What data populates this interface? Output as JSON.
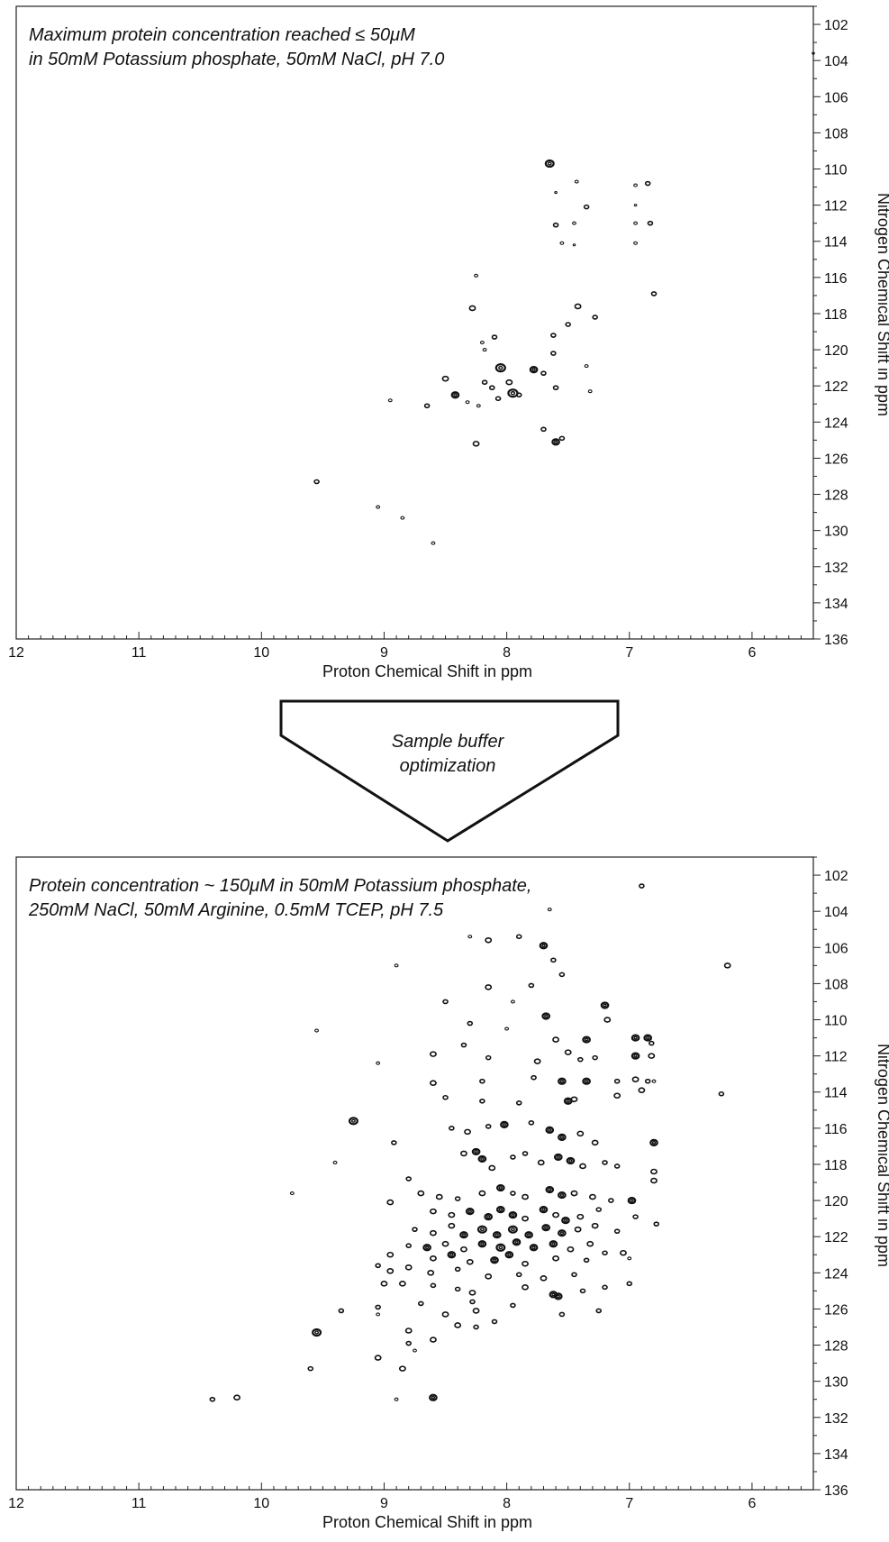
{
  "arrow": {
    "line1": "Sample buffer",
    "line2": "optimization"
  },
  "chart_data": [
    {
      "type": "scatter",
      "annotation": [
        "Maximum protein concentration reached ≤ 50μM",
        "in 50mM Potassium phosphate, 50mM NaCl, pH 7.0"
      ],
      "xlabel": "Proton Chemical Shift in ppm",
      "ylabel": "Nitrogen Chemical Shift in ppm",
      "xlim": [
        12,
        5.5
      ],
      "ylim": [
        101,
        136
      ],
      "x_ticks": [
        12,
        11,
        10,
        9,
        8,
        7,
        6
      ],
      "y_ticks": [
        102,
        104,
        106,
        108,
        110,
        112,
        114,
        116,
        118,
        120,
        122,
        124,
        126,
        128,
        130,
        132,
        134,
        136
      ],
      "x_minor_step": 0.1,
      "y_minor_step": 1,
      "y_axis_side": "right",
      "grid": false,
      "points": [
        [
          7.65,
          109.7,
          3.5
        ],
        [
          7.43,
          110.7,
          1.5
        ],
        [
          7.6,
          111.3,
          1
        ],
        [
          6.95,
          110.9,
          1.5
        ],
        [
          6.85,
          110.8,
          2
        ],
        [
          7.35,
          112.1,
          2
        ],
        [
          6.95,
          112.0,
          1
        ],
        [
          7.6,
          113.1,
          2
        ],
        [
          7.45,
          113.0,
          1.5
        ],
        [
          6.95,
          113.0,
          1.5
        ],
        [
          6.83,
          113.0,
          2
        ],
        [
          7.55,
          114.1,
          1.5
        ],
        [
          7.45,
          114.2,
          1
        ],
        [
          6.95,
          114.1,
          1.5
        ],
        [
          8.25,
          115.9,
          1.5
        ],
        [
          6.8,
          116.9,
          2
        ],
        [
          8.28,
          117.7,
          2.5
        ],
        [
          7.42,
          117.6,
          2.5
        ],
        [
          7.5,
          118.6,
          2
        ],
        [
          7.28,
          118.2,
          2
        ],
        [
          7.62,
          119.2,
          2
        ],
        [
          8.1,
          119.3,
          2
        ],
        [
          8.2,
          119.6,
          1.5
        ],
        [
          8.18,
          120.0,
          1.5
        ],
        [
          7.62,
          120.2,
          2
        ],
        [
          8.05,
          121.0,
          4
        ],
        [
          7.78,
          121.1,
          3
        ],
        [
          7.7,
          121.3,
          2
        ],
        [
          7.35,
          120.9,
          1.5
        ],
        [
          8.5,
          121.6,
          2.5
        ],
        [
          8.18,
          121.8,
          2
        ],
        [
          8.12,
          122.1,
          2
        ],
        [
          7.98,
          121.8,
          2.5
        ],
        [
          7.95,
          122.4,
          4
        ],
        [
          7.9,
          122.5,
          2
        ],
        [
          7.6,
          122.1,
          2
        ],
        [
          7.32,
          122.3,
          1.5
        ],
        [
          8.42,
          122.5,
          3
        ],
        [
          8.32,
          122.9,
          1.5
        ],
        [
          8.07,
          122.7,
          2
        ],
        [
          8.95,
          122.8,
          1.5
        ],
        [
          8.65,
          123.1,
          2
        ],
        [
          8.23,
          123.1,
          1.5
        ],
        [
          7.7,
          124.4,
          2
        ],
        [
          7.6,
          125.1,
          3
        ],
        [
          7.55,
          124.9,
          2
        ],
        [
          8.25,
          125.2,
          2.5
        ],
        [
          9.55,
          127.3,
          2
        ],
        [
          9.05,
          128.7,
          1.5
        ],
        [
          8.85,
          129.3,
          1.5
        ],
        [
          8.6,
          130.7,
          1.5
        ],
        [
          5.5,
          103.6,
          1
        ]
      ]
    },
    {
      "type": "scatter",
      "annotation": [
        "Protein concentration ~ 150μM in 50mM Potassium phosphate,",
        "250mM NaCl, 50mM Arginine, 0.5mM TCEP, pH 7.5"
      ],
      "xlabel": "Proton Chemical Shift in ppm",
      "ylabel": "Nitrogen Chemical Shift in ppm",
      "xlim": [
        12,
        5.5
      ],
      "ylim": [
        101,
        136
      ],
      "x_ticks": [
        12,
        11,
        10,
        9,
        8,
        7,
        6
      ],
      "y_ticks": [
        102,
        104,
        106,
        108,
        110,
        112,
        114,
        116,
        118,
        120,
        122,
        124,
        126,
        128,
        130,
        132,
        134,
        136
      ],
      "x_minor_step": 0.1,
      "y_minor_step": 1,
      "y_axis_side": "right",
      "grid": false,
      "points": [
        [
          6.9,
          102.6,
          2
        ],
        [
          7.65,
          103.9,
          1.5
        ],
        [
          8.3,
          105.4,
          1.5
        ],
        [
          8.15,
          105.6,
          2.5
        ],
        [
          7.9,
          105.4,
          2
        ],
        [
          7.7,
          105.9,
          3
        ],
        [
          7.62,
          106.7,
          2
        ],
        [
          6.2,
          107.0,
          2.5
        ],
        [
          8.9,
          107.0,
          1.5
        ],
        [
          7.55,
          107.5,
          2
        ],
        [
          8.15,
          108.2,
          2.5
        ],
        [
          7.8,
          108.1,
          2
        ],
        [
          8.5,
          109.0,
          2
        ],
        [
          7.95,
          109.0,
          1.5
        ],
        [
          7.2,
          109.2,
          3
        ],
        [
          7.68,
          109.8,
          3
        ],
        [
          9.55,
          110.6,
          1.5
        ],
        [
          8.3,
          110.2,
          2
        ],
        [
          8.0,
          110.5,
          1.5
        ],
        [
          7.6,
          111.1,
          2.5
        ],
        [
          7.35,
          111.1,
          3
        ],
        [
          7.18,
          110.0,
          2.5
        ],
        [
          6.95,
          111.0,
          3
        ],
        [
          6.85,
          111.0,
          3
        ],
        [
          6.82,
          111.3,
          2
        ],
        [
          9.05,
          112.4,
          1.5
        ],
        [
          8.6,
          111.9,
          2.5
        ],
        [
          8.35,
          111.4,
          2
        ],
        [
          8.15,
          112.1,
          2
        ],
        [
          7.75,
          112.3,
          2.5
        ],
        [
          7.5,
          111.8,
          2.5
        ],
        [
          7.4,
          112.2,
          2
        ],
        [
          7.28,
          112.1,
          2
        ],
        [
          6.95,
          112.0,
          3
        ],
        [
          6.82,
          112.0,
          2.5
        ],
        [
          8.6,
          113.5,
          2.5
        ],
        [
          8.2,
          113.4,
          2
        ],
        [
          7.78,
          113.2,
          2
        ],
        [
          7.55,
          113.4,
          3
        ],
        [
          7.35,
          113.4,
          3
        ],
        [
          7.1,
          113.4,
          2
        ],
        [
          6.95,
          113.3,
          2.5
        ],
        [
          6.85,
          113.4,
          2
        ],
        [
          6.8,
          113.4,
          1.5
        ],
        [
          8.5,
          114.3,
          2
        ],
        [
          8.2,
          114.5,
          2
        ],
        [
          7.9,
          114.6,
          2
        ],
        [
          7.5,
          114.5,
          3
        ],
        [
          7.45,
          114.4,
          2.5
        ],
        [
          7.1,
          114.2,
          2.5
        ],
        [
          6.9,
          113.9,
          2.5
        ],
        [
          6.25,
          114.1,
          2
        ],
        [
          9.25,
          115.6,
          3.5
        ],
        [
          8.45,
          116.0,
          2
        ],
        [
          8.32,
          116.2,
          2.5
        ],
        [
          8.15,
          115.9,
          2
        ],
        [
          8.02,
          115.8,
          3
        ],
        [
          7.8,
          115.7,
          2
        ],
        [
          7.65,
          116.1,
          3
        ],
        [
          7.55,
          116.5,
          3
        ],
        [
          7.4,
          116.3,
          2.5
        ],
        [
          7.28,
          116.8,
          2.5
        ],
        [
          6.8,
          116.8,
          3
        ],
        [
          8.92,
          116.8,
          2
        ],
        [
          9.4,
          117.9,
          1.5
        ],
        [
          8.8,
          118.8,
          2
        ],
        [
          8.35,
          117.4,
          2.5
        ],
        [
          8.25,
          117.3,
          3
        ],
        [
          8.2,
          117.7,
          3
        ],
        [
          8.12,
          118.2,
          2.5
        ],
        [
          7.95,
          117.6,
          2
        ],
        [
          7.85,
          117.4,
          2
        ],
        [
          7.72,
          117.9,
          2.5
        ],
        [
          7.58,
          117.6,
          3
        ],
        [
          7.48,
          117.8,
          3
        ],
        [
          7.38,
          118.1,
          2.5
        ],
        [
          7.2,
          117.9,
          2
        ],
        [
          7.1,
          118.1,
          2
        ],
        [
          6.8,
          118.4,
          2.5
        ],
        [
          9.75,
          119.6,
          1.5
        ],
        [
          8.95,
          120.1,
          2.5
        ],
        [
          8.7,
          119.6,
          2.5
        ],
        [
          8.55,
          119.8,
          2.5
        ],
        [
          8.4,
          119.9,
          2
        ],
        [
          8.2,
          119.6,
          2.5
        ],
        [
          8.05,
          119.3,
          3
        ],
        [
          7.95,
          119.6,
          2
        ],
        [
          7.85,
          119.8,
          2.5
        ],
        [
          7.65,
          119.4,
          3
        ],
        [
          7.55,
          119.7,
          3
        ],
        [
          7.45,
          119.6,
          2.5
        ],
        [
          7.3,
          119.8,
          2.5
        ],
        [
          7.15,
          120.0,
          2
        ],
        [
          6.98,
          120.0,
          3
        ],
        [
          6.8,
          118.9,
          2.5
        ],
        [
          8.6,
          120.6,
          2.5
        ],
        [
          8.45,
          120.8,
          2.5
        ],
        [
          8.3,
          120.6,
          3
        ],
        [
          8.15,
          120.9,
          3
        ],
        [
          8.05,
          120.5,
          3
        ],
        [
          7.95,
          120.8,
          3
        ],
        [
          7.85,
          121.0,
          2.5
        ],
        [
          7.7,
          120.5,
          3
        ],
        [
          7.6,
          120.8,
          2.5
        ],
        [
          7.52,
          121.1,
          3
        ],
        [
          7.4,
          120.9,
          2.5
        ],
        [
          7.25,
          120.5,
          2
        ],
        [
          6.95,
          120.9,
          2
        ],
        [
          6.78,
          121.3,
          2
        ],
        [
          8.75,
          121.6,
          2
        ],
        [
          8.6,
          121.8,
          2.5
        ],
        [
          8.45,
          121.4,
          2.5
        ],
        [
          8.35,
          121.9,
          3
        ],
        [
          8.2,
          121.6,
          3.5
        ],
        [
          8.08,
          121.9,
          3
        ],
        [
          7.95,
          121.6,
          3.5
        ],
        [
          7.82,
          121.9,
          3
        ],
        [
          7.68,
          121.5,
          3
        ],
        [
          7.55,
          121.8,
          3
        ],
        [
          7.42,
          121.6,
          2.5
        ],
        [
          7.28,
          121.4,
          2.5
        ],
        [
          7.1,
          121.7,
          2
        ],
        [
          8.8,
          122.5,
          2
        ],
        [
          8.65,
          122.6,
          3
        ],
        [
          8.5,
          122.4,
          2.5
        ],
        [
          8.35,
          122.7,
          2.5
        ],
        [
          8.2,
          122.4,
          3
        ],
        [
          8.05,
          122.6,
          3.5
        ],
        [
          7.92,
          122.3,
          3
        ],
        [
          7.78,
          122.6,
          3
        ],
        [
          7.62,
          122.4,
          3
        ],
        [
          7.48,
          122.7,
          2.5
        ],
        [
          7.32,
          122.4,
          2.5
        ],
        [
          7.2,
          122.9,
          2
        ],
        [
          7.05,
          122.9,
          2.5
        ],
        [
          8.95,
          123.0,
          2.5
        ],
        [
          8.6,
          123.2,
          2.5
        ],
        [
          8.45,
          123.0,
          3
        ],
        [
          8.3,
          123.4,
          2.5
        ],
        [
          8.1,
          123.3,
          3
        ],
        [
          7.98,
          123.0,
          3
        ],
        [
          7.85,
          123.5,
          2.5
        ],
        [
          7.6,
          123.2,
          2.5
        ],
        [
          7.35,
          123.3,
          2
        ],
        [
          7.0,
          123.2,
          1.5
        ],
        [
          9.05,
          123.6,
          2
        ],
        [
          8.95,
          123.9,
          2.5
        ],
        [
          8.8,
          123.7,
          2.5
        ],
        [
          8.62,
          124.0,
          2.5
        ],
        [
          8.4,
          123.8,
          2
        ],
        [
          8.15,
          124.2,
          2.5
        ],
        [
          7.9,
          124.1,
          2
        ],
        [
          7.7,
          124.3,
          2.5
        ],
        [
          7.45,
          124.1,
          2
        ],
        [
          9.0,
          124.6,
          2.5
        ],
        [
          8.85,
          124.6,
          2.5
        ],
        [
          8.6,
          124.7,
          2
        ],
        [
          8.4,
          124.9,
          2
        ],
        [
          8.28,
          125.1,
          2.5
        ],
        [
          7.85,
          124.8,
          2.5
        ],
        [
          7.62,
          125.2,
          3
        ],
        [
          7.58,
          125.3,
          3
        ],
        [
          7.38,
          125.0,
          2
        ],
        [
          7.2,
          124.8,
          2
        ],
        [
          7.0,
          124.6,
          2
        ],
        [
          9.35,
          126.1,
          2
        ],
        [
          9.05,
          125.9,
          2
        ],
        [
          8.7,
          125.7,
          2
        ],
        [
          8.5,
          126.3,
          2.5
        ],
        [
          8.28,
          125.6,
          2
        ],
        [
          8.25,
          126.1,
          2.5
        ],
        [
          7.95,
          125.8,
          2
        ],
        [
          7.55,
          126.3,
          2
        ],
        [
          7.25,
          126.1,
          2
        ],
        [
          9.55,
          127.3,
          3.5
        ],
        [
          9.05,
          126.3,
          1.5
        ],
        [
          8.8,
          127.2,
          2.5
        ],
        [
          8.6,
          127.7,
          2.5
        ],
        [
          8.4,
          126.9,
          2.5
        ],
        [
          8.25,
          127.0,
          2
        ],
        [
          8.1,
          126.7,
          2
        ],
        [
          8.8,
          127.9,
          2
        ],
        [
          8.75,
          128.3,
          1.5
        ],
        [
          9.6,
          129.3,
          2
        ],
        [
          9.05,
          128.7,
          2.5
        ],
        [
          8.85,
          129.3,
          2.5
        ],
        [
          8.9,
          131.0,
          1.5
        ],
        [
          8.6,
          130.9,
          3
        ],
        [
          10.4,
          131.0,
          2
        ],
        [
          10.2,
          130.9,
          2.5
        ]
      ]
    }
  ]
}
